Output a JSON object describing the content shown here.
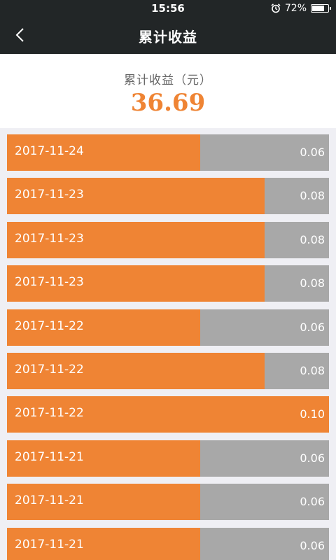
{
  "status_bar": {
    "time": "15:56",
    "battery": "72%",
    "battery_level": 0.72
  },
  "header": {
    "title": "累计收益"
  },
  "summary": {
    "label": "累计收益（元）",
    "amount": "36.69"
  },
  "colors": {
    "accent": "#ef8434",
    "bar_bg": "#a8a8a8",
    "header_bg": "#222627"
  },
  "rows": [
    {
      "date": "2017-11-24",
      "value": "0.06",
      "ratio": 0.6
    },
    {
      "date": "2017-11-23",
      "value": "0.08",
      "ratio": 0.8
    },
    {
      "date": "2017-11-23",
      "value": "0.08",
      "ratio": 0.8
    },
    {
      "date": "2017-11-23",
      "value": "0.08",
      "ratio": 0.8
    },
    {
      "date": "2017-11-22",
      "value": "0.06",
      "ratio": 0.6
    },
    {
      "date": "2017-11-22",
      "value": "0.08",
      "ratio": 0.8
    },
    {
      "date": "2017-11-22",
      "value": "0.10",
      "ratio": 1.0
    },
    {
      "date": "2017-11-21",
      "value": "0.06",
      "ratio": 0.6
    },
    {
      "date": "2017-11-21",
      "value": "0.06",
      "ratio": 0.6
    },
    {
      "date": "2017-11-21",
      "value": "0.06",
      "ratio": 0.6
    }
  ]
}
